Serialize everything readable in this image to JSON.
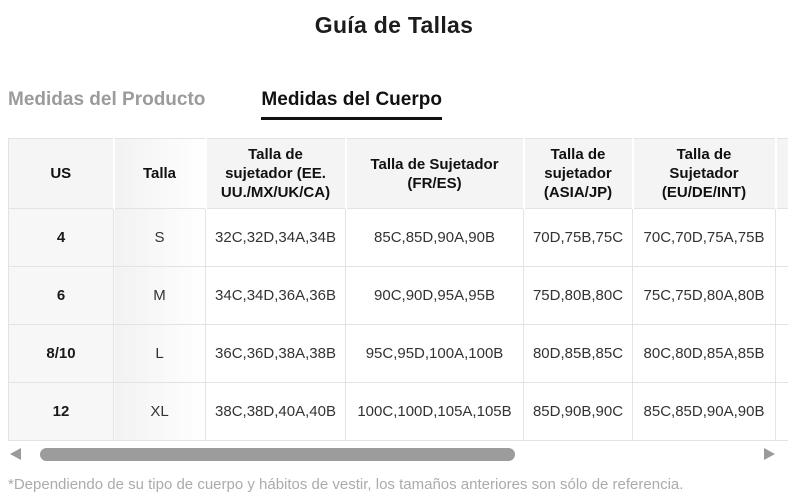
{
  "page": {
    "title": "Guía de Tallas",
    "footnote": "*Dependiendo de su tipo de cuerpo y hábitos de vestir, los tamaños anteriores son sólo de referencia."
  },
  "tabs": [
    {
      "label": "Medidas del Producto",
      "active": false
    },
    {
      "label": "Medidas del Cuerpo",
      "active": true
    }
  ],
  "size_table": {
    "columns": [
      "US",
      "Talla",
      "Talla de sujetador (EE. UU./MX/UK/CA)",
      "Talla de Sujetador (FR/ES)",
      "Talla de sujetador (ASIA/JP)",
      "Talla de Sujetador (EU/DE/INT)"
    ],
    "rows": [
      [
        "4",
        "S",
        "32C,32D,34A,34B",
        "85C,85D,90A,90B",
        "70D,75B,75C",
        "70C,70D,75A,75B"
      ],
      [
        "6",
        "M",
        "34C,34D,36A,36B",
        "90C,90D,95A,95B",
        "75D,80B,80C",
        "75C,75D,80A,80B"
      ],
      [
        "8/10",
        "L",
        "36C,36D,38A,38B",
        "95C,95D,100A,100B",
        "80D,85B,85C",
        "80C,80D,85A,85B"
      ],
      [
        "12",
        "XL",
        "38C,38D,40A,40B",
        "100C,100D,105A,105B",
        "85D,90B,90C",
        "85C,85D,90A,90B"
      ]
    ]
  },
  "colors": {
    "active_tab": "#111111",
    "inactive_tab": "#9b9b9b",
    "table_border": "#e3e3e3",
    "header_bg": "#f4f4f4",
    "scrollbar_thumb": "#9c9c9c",
    "footnote_text": "#ababab"
  }
}
